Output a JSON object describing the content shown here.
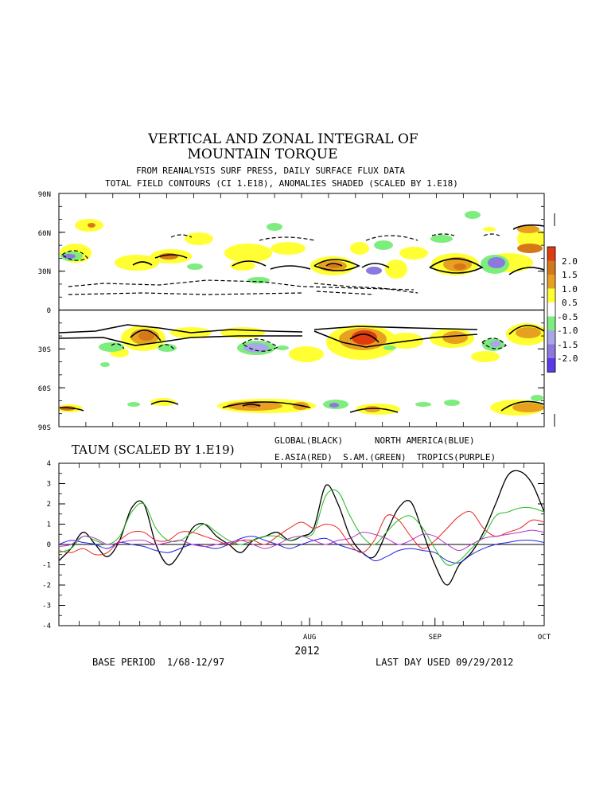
{
  "header": {
    "title_line1": "VERTICAL AND ZONAL INTEGRAL OF",
    "title_line2": "MOUNTAIN TORQUE",
    "subtitle_line1": "FROM REANALYSIS SURF PRESS, DAILY SURFACE FLUX DATA",
    "subtitle_line2": "TOTAL FIELD CONTOURS (CI 1.E18),  ANOMALIES SHADED (SCALED BY 1.E18)"
  },
  "footer": {
    "year": "2012",
    "base_period": "BASE PERIOD  1/68-12/97",
    "last_day": "LAST DAY USED 09/29/2012"
  },
  "colors": {
    "pos_0_5": "#ffff33",
    "pos_1_0": "#e8a020",
    "pos_1_5": "#d4781a",
    "pos_2_0": "#e03a10",
    "neg_0_5": "#7ded7d",
    "neg_1_0": "#a8a8e8",
    "neg_1_5": "#8c78e0",
    "neg_2_0": "#5a3ae8"
  },
  "chart_data": [
    {
      "type": "heatmap",
      "y_ticks": [
        "90N",
        "60N",
        "30N",
        "0",
        "30S",
        "60S",
        "90S"
      ],
      "legend_labels": [
        "2.0",
        "1.5",
        "1.0",
        "0.5",
        "-0.5",
        "-1.0",
        "-1.5",
        "-2.0"
      ]
    },
    {
      "type": "line",
      "title": "TAUM (SCALED BY 1.E19)",
      "legend_line1": "GLOBAL(BLACK)      NORTH AMERICA(BLUE)",
      "legend_line2": "E.ASIA(RED)  S.AM.(GREEN)  TROPICS(PURPLE)",
      "ylim": [
        -4,
        4
      ],
      "y_ticks": [
        "4",
        "3",
        "2",
        "1",
        "0",
        "-1",
        "-2",
        "-3",
        "-4"
      ],
      "x_ticks": [
        "AUG",
        "SEP",
        "OCT"
      ],
      "x_days": [
        0,
        3,
        6,
        9,
        12,
        15,
        18,
        21,
        24,
        27,
        30,
        33,
        36,
        39,
        42,
        45,
        48,
        51,
        54,
        57,
        60,
        63,
        66,
        69,
        72,
        75,
        78,
        81,
        84,
        87,
        90,
        93,
        96,
        99,
        102,
        105,
        108,
        111,
        114,
        117,
        120
      ],
      "series": [
        {
          "color": "#000000",
          "values": [
            -0.8,
            -0.2,
            0.6,
            0.0,
            -0.6,
            0.2,
            1.8,
            2.0,
            0.0,
            -1.0,
            -0.4,
            0.8,
            1.0,
            0.4,
            0.0,
            -0.4,
            0.2,
            0.4,
            0.6,
            0.2,
            0.4,
            0.8,
            2.9,
            2.0,
            0.4,
            -0.4,
            -0.6,
            0.6,
            1.8,
            2.1,
            0.6,
            -1.0,
            -2.0,
            -1.0,
            -0.4,
            0.6,
            2.0,
            3.4,
            3.6,
            3.0,
            1.6
          ]
        },
        {
          "color": "#2222dd",
          "values": [
            0.0,
            0.2,
            0.1,
            0.0,
            -0.2,
            0.1,
            0.0,
            -0.1,
            -0.3,
            -0.4,
            -0.2,
            0.0,
            -0.1,
            -0.2,
            0.0,
            0.3,
            0.4,
            0.2,
            0.0,
            -0.2,
            0.0,
            0.2,
            0.3,
            0.0,
            -0.2,
            -0.4,
            -0.8,
            -0.6,
            -0.3,
            -0.2,
            -0.3,
            -0.4,
            -0.8,
            -0.9,
            -0.5,
            -0.2,
            0.0,
            0.1,
            0.2,
            0.2,
            0.1
          ]
        },
        {
          "color": "#ee2222",
          "values": [
            -0.3,
            -0.4,
            -0.2,
            -0.5,
            -0.4,
            0.2,
            0.6,
            0.6,
            0.2,
            0.2,
            0.6,
            0.6,
            0.4,
            0.2,
            0.0,
            0.2,
            0.2,
            0.0,
            0.4,
            0.8,
            1.1,
            0.8,
            1.0,
            0.8,
            0.0,
            -0.4,
            0.2,
            1.4,
            1.2,
            0.4,
            -0.2,
            0.2,
            0.8,
            1.4,
            1.6,
            0.8,
            0.4,
            0.6,
            0.8,
            1.2,
            1.1
          ]
        },
        {
          "color": "#22bb22",
          "values": [
            -0.4,
            -0.2,
            0.4,
            0.2,
            0.0,
            0.4,
            1.6,
            2.0,
            0.8,
            0.2,
            0.2,
            0.6,
            1.0,
            0.6,
            0.2,
            0.0,
            0.2,
            0.4,
            0.4,
            0.2,
            0.4,
            0.6,
            2.4,
            2.6,
            1.4,
            0.4,
            0.0,
            0.6,
            1.2,
            1.4,
            0.8,
            -0.2,
            -1.0,
            -0.8,
            -0.2,
            0.4,
            1.4,
            1.6,
            1.8,
            1.8,
            1.6
          ]
        },
        {
          "color": "#bb33cc",
          "values": [
            -0.1,
            0.0,
            0.4,
            0.3,
            0.0,
            0.1,
            0.2,
            0.2,
            0.0,
            0.1,
            0.2,
            0.0,
            -0.1,
            0.0,
            0.1,
            0.2,
            0.0,
            -0.2,
            0.0,
            0.3,
            0.4,
            0.2,
            0.0,
            0.2,
            0.3,
            0.6,
            0.5,
            0.3,
            0.0,
            0.2,
            0.5,
            0.4,
            0.0,
            -0.3,
            0.0,
            0.3,
            0.4,
            0.5,
            0.6,
            0.7,
            0.6
          ]
        }
      ]
    }
  ]
}
